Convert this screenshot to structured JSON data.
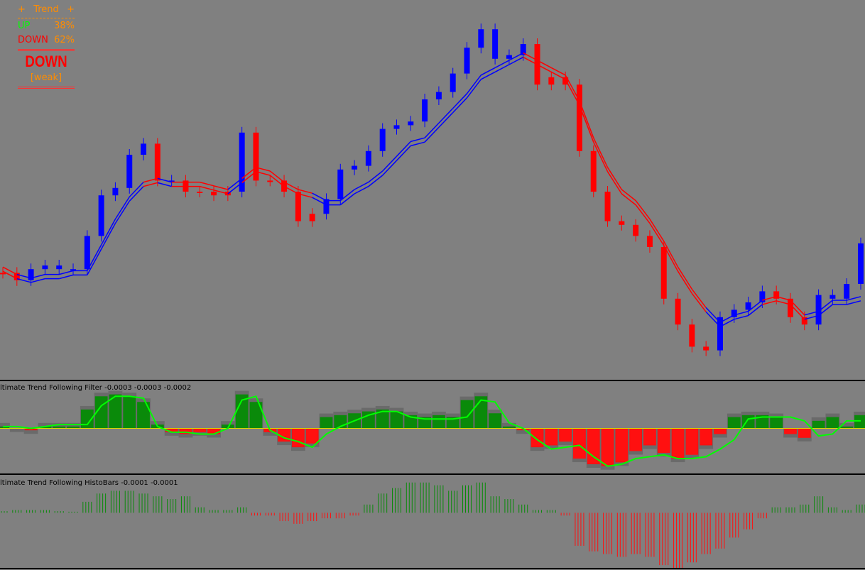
{
  "panel": {
    "title": "Trend",
    "up_label": "UP",
    "up_pct": "38%",
    "down_label": "DOWN",
    "down_pct": "62%",
    "signal": "DOWN",
    "strength": "[weak]"
  },
  "chart_data": [
    {
      "type": "price",
      "values": [
        28,
        26,
        29,
        30,
        29,
        29,
        38,
        49,
        51,
        60,
        63,
        53,
        53,
        50,
        50,
        49,
        50,
        66,
        53,
        53,
        50,
        42,
        44,
        48,
        56,
        57,
        61,
        67,
        68,
        69,
        75,
        77,
        82,
        89,
        94,
        86,
        87,
        90,
        79,
        81,
        79,
        61,
        50,
        42,
        41,
        38,
        35,
        21,
        14,
        8,
        7,
        16,
        18,
        20,
        23,
        21,
        16,
        14,
        22,
        21,
        25,
        36
      ],
      "signal": [
        29,
        27,
        26,
        27,
        27,
        28,
        28,
        35,
        42,
        48,
        52,
        53,
        52,
        52,
        52,
        51,
        50,
        53,
        56,
        55,
        52,
        50,
        49,
        47,
        47,
        50,
        52,
        55,
        59,
        63,
        64,
        68,
        72,
        76,
        81,
        83,
        85,
        87,
        85,
        83,
        81,
        74,
        64,
        56,
        50,
        47,
        42,
        36,
        29,
        23,
        18,
        14,
        16,
        17,
        20,
        21,
        20,
        16,
        17,
        20,
        20,
        21
      ],
      "up_color": "#0000ff",
      "down_color": "#ff0000",
      "ylim": [
        0,
        100
      ]
    },
    {
      "type": "histogram-line",
      "title": "ltimate Trend Following Filter -0.0003 -0.0003 -0.0002",
      "values": [
        0.05,
        0,
        -0.05,
        0.05,
        0.05,
        0.05,
        0.5,
        0.85,
        0.9,
        0.85,
        0.7,
        0.1,
        -0.1,
        -0.15,
        -0.1,
        -0.15,
        0.1,
        0.9,
        0.7,
        -0.1,
        -0.35,
        -0.5,
        -0.4,
        0.3,
        0.35,
        0.4,
        0.45,
        0.5,
        0.45,
        0.35,
        0.3,
        0.35,
        0.3,
        0.75,
        0.85,
        0.4,
        0.05,
        -0.05,
        -0.5,
        -0.45,
        -0.35,
        -0.8,
        -0.95,
        -1.0,
        -0.9,
        -0.6,
        -0.45,
        -0.65,
        -0.8,
        -0.7,
        -0.45,
        -0.15,
        0.3,
        0.35,
        0.35,
        0.3,
        -0.15,
        -0.25,
        0.2,
        0.3,
        0.05,
        0.35
      ],
      "line": [
        0.05,
        0.05,
        0,
        0.05,
        0.1,
        0.1,
        0.1,
        0.6,
        0.85,
        0.85,
        0.8,
        0.05,
        -0.1,
        -0.1,
        -0.15,
        -0.15,
        0,
        0.75,
        0.85,
        -0.05,
        -0.25,
        -0.35,
        -0.5,
        -0.15,
        0.05,
        0.2,
        0.35,
        0.45,
        0.45,
        0.3,
        0.25,
        0.25,
        0.25,
        0.3,
        0.75,
        0.7,
        0.15,
        0,
        -0.3,
        -0.55,
        -0.5,
        -0.45,
        -0.75,
        -1.0,
        -0.95,
        -0.8,
        -0.75,
        -0.7,
        -0.8,
        -0.8,
        -0.75,
        -0.55,
        -0.3,
        0.25,
        0.3,
        0.3,
        0.3,
        0.2,
        -0.2,
        -0.15,
        0.2,
        0.2
      ],
      "pos_color": "#0a8a0a",
      "neg_color": "#ff1010",
      "line_color": "#00ff00",
      "ylim": [
        -1.1,
        1.1
      ]
    },
    {
      "type": "histobars",
      "title": "ltimate Trend Following HistoBars -0.0001 -0.0001",
      "values": [
        0.03,
        0.05,
        0.05,
        0.05,
        0.03,
        0.02,
        0.2,
        0.35,
        0.4,
        0.4,
        0.35,
        0.3,
        0.25,
        0.3,
        0.1,
        0.05,
        0.05,
        0.1,
        -0.05,
        -0.05,
        -0.15,
        -0.2,
        -0.15,
        -0.1,
        -0.1,
        -0.05,
        0.15,
        0.35,
        0.45,
        0.55,
        0.55,
        0.5,
        0.4,
        0.5,
        0.55,
        0.3,
        0.25,
        0.15,
        0.05,
        0.05,
        -0.05,
        -0.6,
        -0.7,
        -0.75,
        -0.8,
        -0.75,
        -0.8,
        -0.95,
        -1.0,
        -0.9,
        -0.75,
        -0.65,
        -0.45,
        -0.3,
        -0.1,
        0.1,
        0.1,
        0.15,
        0.3,
        0.1,
        0.05,
        0.15
      ],
      "pos_color": "#0a8a0a",
      "neg_color": "#ff1010",
      "ylim": [
        -1,
        0.65
      ]
    }
  ]
}
